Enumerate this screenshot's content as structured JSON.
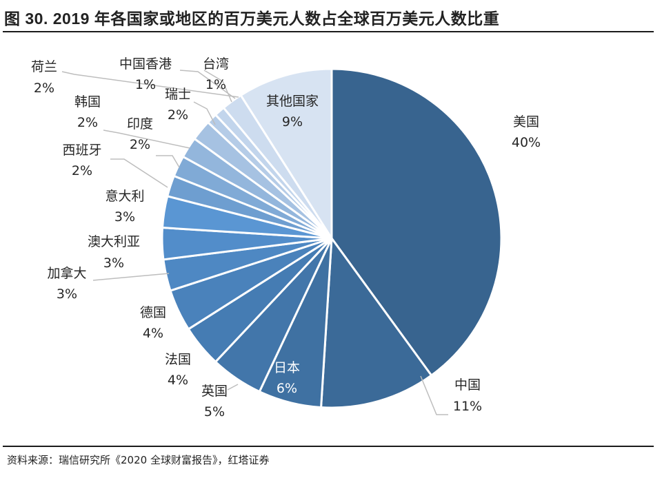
{
  "figure": {
    "title": "图 30. 2019 年各国家或地区的百万美元人数占全球百万美元人数比重",
    "source": "资料来源：瑞信研究所《2020 全球财富报告》，红塔证券"
  },
  "chart_data": {
    "type": "pie",
    "title": "图 30. 2019 年各国家或地区的百万美元人数占全球百万美元人数比重",
    "unit": "%",
    "start": "12 o'clock",
    "direction": "clockwise",
    "slices": [
      {
        "label": "美国",
        "value": 40,
        "value_label": "40%",
        "color": "#38648f"
      },
      {
        "label": "中国",
        "value": 11,
        "value_label": "11%",
        "color": "#3b6a98"
      },
      {
        "label": "日本",
        "value": 6,
        "value_label": "6%",
        "color": "#3f71a2"
      },
      {
        "label": "英国",
        "value": 5,
        "value_label": "5%",
        "color": "#4276aa"
      },
      {
        "label": "法国",
        "value": 4,
        "value_label": "4%",
        "color": "#457cb3"
      },
      {
        "label": "德国",
        "value": 4,
        "value_label": "4%",
        "color": "#4a82bb"
      },
      {
        "label": "加拿大",
        "value": 3,
        "value_label": "3%",
        "color": "#4e88c3"
      },
      {
        "label": "澳大利亚",
        "value": 3,
        "value_label": "3%",
        "color": "#528dca"
      },
      {
        "label": "意大利",
        "value": 3,
        "value_label": "3%",
        "color": "#5a96d3"
      },
      {
        "label": "西班牙",
        "value": 2,
        "value_label": "2%",
        "color": "#6e9ed0"
      },
      {
        "label": "印度",
        "value": 2,
        "value_label": "2%",
        "color": "#80aad6"
      },
      {
        "label": "韩国",
        "value": 2,
        "value_label": "2%",
        "color": "#93b6dc"
      },
      {
        "label": "瑞士",
        "value": 2,
        "value_label": "2%",
        "color": "#a6c2e2"
      },
      {
        "label": "台湾",
        "value": 1,
        "value_label": "1%",
        "color": "#b5cce7"
      },
      {
        "label": "中国香港",
        "value": 1,
        "value_label": "1%",
        "color": "#c2d5ec"
      },
      {
        "label": "荷兰",
        "value": 2,
        "value_label": "2%",
        "color": "#cddcef"
      },
      {
        "label": "其他国家",
        "value": 9,
        "value_label": "9%",
        "color": "#d7e3f2"
      }
    ]
  }
}
